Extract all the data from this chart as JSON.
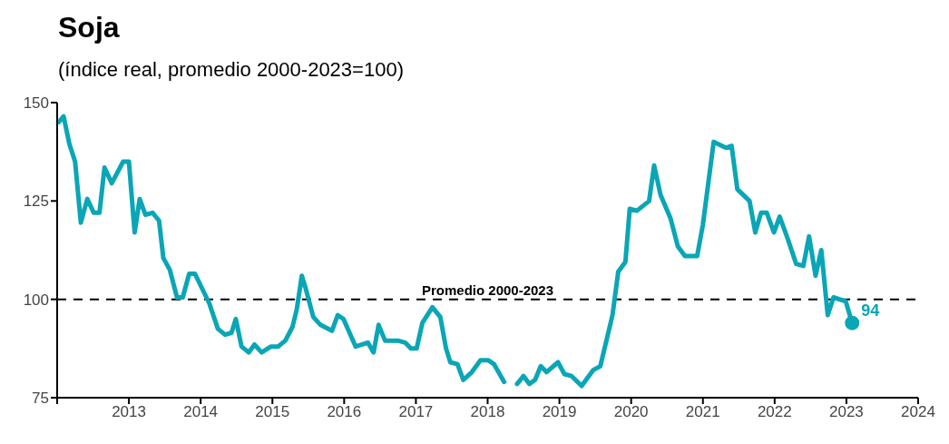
{
  "chart_data": {
    "type": "line",
    "title": "Soja",
    "subtitle": "(índice real, promedio 2000-2023=100)",
    "x": [
      2012.02,
      2012.09,
      2012.17,
      2012.25,
      2012.33,
      2012.42,
      2012.51,
      2012.59,
      2012.66,
      2012.76,
      2012.92,
      2013.0,
      2013.08,
      2013.15,
      2013.23,
      2013.33,
      2013.42,
      2013.48,
      2013.57,
      2013.67,
      2013.75,
      2013.84,
      2013.92,
      2014.04,
      2014.12,
      2014.24,
      2014.34,
      2014.43,
      2014.49,
      2014.57,
      2014.67,
      2014.75,
      2014.85,
      2014.98,
      2015.08,
      2015.18,
      2015.28,
      2015.34,
      2015.41,
      2015.46,
      2015.57,
      2015.67,
      2015.83,
      2015.91,
      2015.99,
      2016.16,
      2016.33,
      2016.41,
      2016.48,
      2016.57,
      2016.75,
      2016.85,
      2016.93,
      2017.01,
      2017.09,
      2017.23,
      2017.34,
      2017.42,
      2017.48,
      2017.58,
      2017.66,
      2017.78,
      2017.9,
      2018.01,
      2018.09,
      2018.23,
      2018.32,
      2018.41,
      2018.5,
      2018.58,
      2018.66,
      2018.74,
      2018.82,
      2018.98,
      2019.07,
      2019.17,
      2019.31,
      2019.47,
      2019.57,
      2019.74,
      2019.82,
      2019.92,
      2019.98,
      2020.08,
      2020.25,
      2020.32,
      2020.41,
      2020.55,
      2020.65,
      2020.75,
      2020.92,
      2021.0,
      2021.15,
      2021.32,
      2021.4,
      2021.48,
      2021.65,
      2021.73,
      2021.81,
      2021.89,
      2021.99,
      2022.07,
      2022.18,
      2022.3,
      2022.4,
      2022.48,
      2022.57,
      2022.65,
      2022.74,
      2022.82,
      2022.99,
      2023.08
    ],
    "series": [
      {
        "color": "#0aa6b6",
        "values": [
          145,
          146.5,
          139.5,
          135,
          119.5,
          125.5,
          122,
          122,
          133.5,
          129.5,
          135,
          135,
          117,
          125.5,
          121.5,
          122,
          120,
          110.5,
          107.5,
          100.5,
          100.5,
          106.5,
          106.5,
          102,
          99,
          92.5,
          91,
          91.5,
          95,
          88,
          86.5,
          88.5,
          86.5,
          88,
          88,
          89.5,
          93,
          97.5,
          106,
          103,
          95.5,
          93.5,
          92,
          96,
          95,
          88,
          89,
          86.5,
          93.5,
          89.5,
          89.5,
          89,
          87.5,
          87.5,
          94,
          98,
          95.5,
          87.5,
          84,
          83.5,
          79.5,
          81.5,
          84.5,
          84.5,
          83.5,
          79,
          null,
          78.5,
          80.5,
          78.5,
          79.5,
          83,
          81.5,
          84,
          81,
          80.5,
          78,
          82,
          83,
          96,
          107,
          109.5,
          123,
          122.5,
          125,
          134,
          126.5,
          120.5,
          113.5,
          111,
          111,
          119,
          140,
          138.5,
          139,
          128,
          125,
          117,
          122,
          122,
          117,
          121,
          115.5,
          109,
          108.5,
          116,
          106,
          112.5,
          96,
          100.5,
          99.5,
          94
        ],
        "value_labels": [
          null,
          null,
          null,
          null,
          null,
          null,
          null,
          null,
          null,
          null,
          null,
          null,
          null,
          null,
          null,
          null,
          null,
          null,
          null,
          null,
          null,
          null,
          null,
          null,
          null,
          null,
          null,
          null,
          null,
          null,
          null,
          null,
          null,
          null,
          null,
          null,
          null,
          null,
          null,
          null,
          null,
          null,
          null,
          null,
          null,
          null,
          null,
          null,
          null,
          null,
          null,
          null,
          null,
          null,
          null,
          null,
          null,
          null,
          null,
          null,
          null,
          null,
          null,
          null,
          null,
          null,
          null,
          null,
          null,
          null,
          null,
          null,
          null,
          null,
          null,
          null,
          null,
          null,
          null,
          null,
          null,
          null,
          null,
          null,
          null,
          null,
          null,
          null,
          null,
          null,
          null,
          null,
          null,
          null,
          null,
          null,
          null,
          null,
          null,
          null,
          null,
          null,
          null,
          null,
          null,
          null,
          null,
          null,
          null,
          null,
          null,
          "94"
        ]
      }
    ],
    "xlim": [
      2012,
      2024
    ],
    "xticks": [
      {
        "value": 2012,
        "label": null
      },
      2013,
      2014,
      2015,
      2016,
      2017,
      2018,
      2019,
      2020,
      2021,
      2022,
      2023,
      2024
    ],
    "ylim": [
      75,
      150
    ],
    "yticks": [
      75,
      100,
      125,
      150
    ],
    "ref_lines": [
      {
        "axis": "y",
        "value": 100,
        "label": "Promedio 2000-2023",
        "color": "#000000",
        "line_style": "dashed"
      }
    ],
    "grid": false,
    "marker": "none",
    "line_style": "solid"
  }
}
